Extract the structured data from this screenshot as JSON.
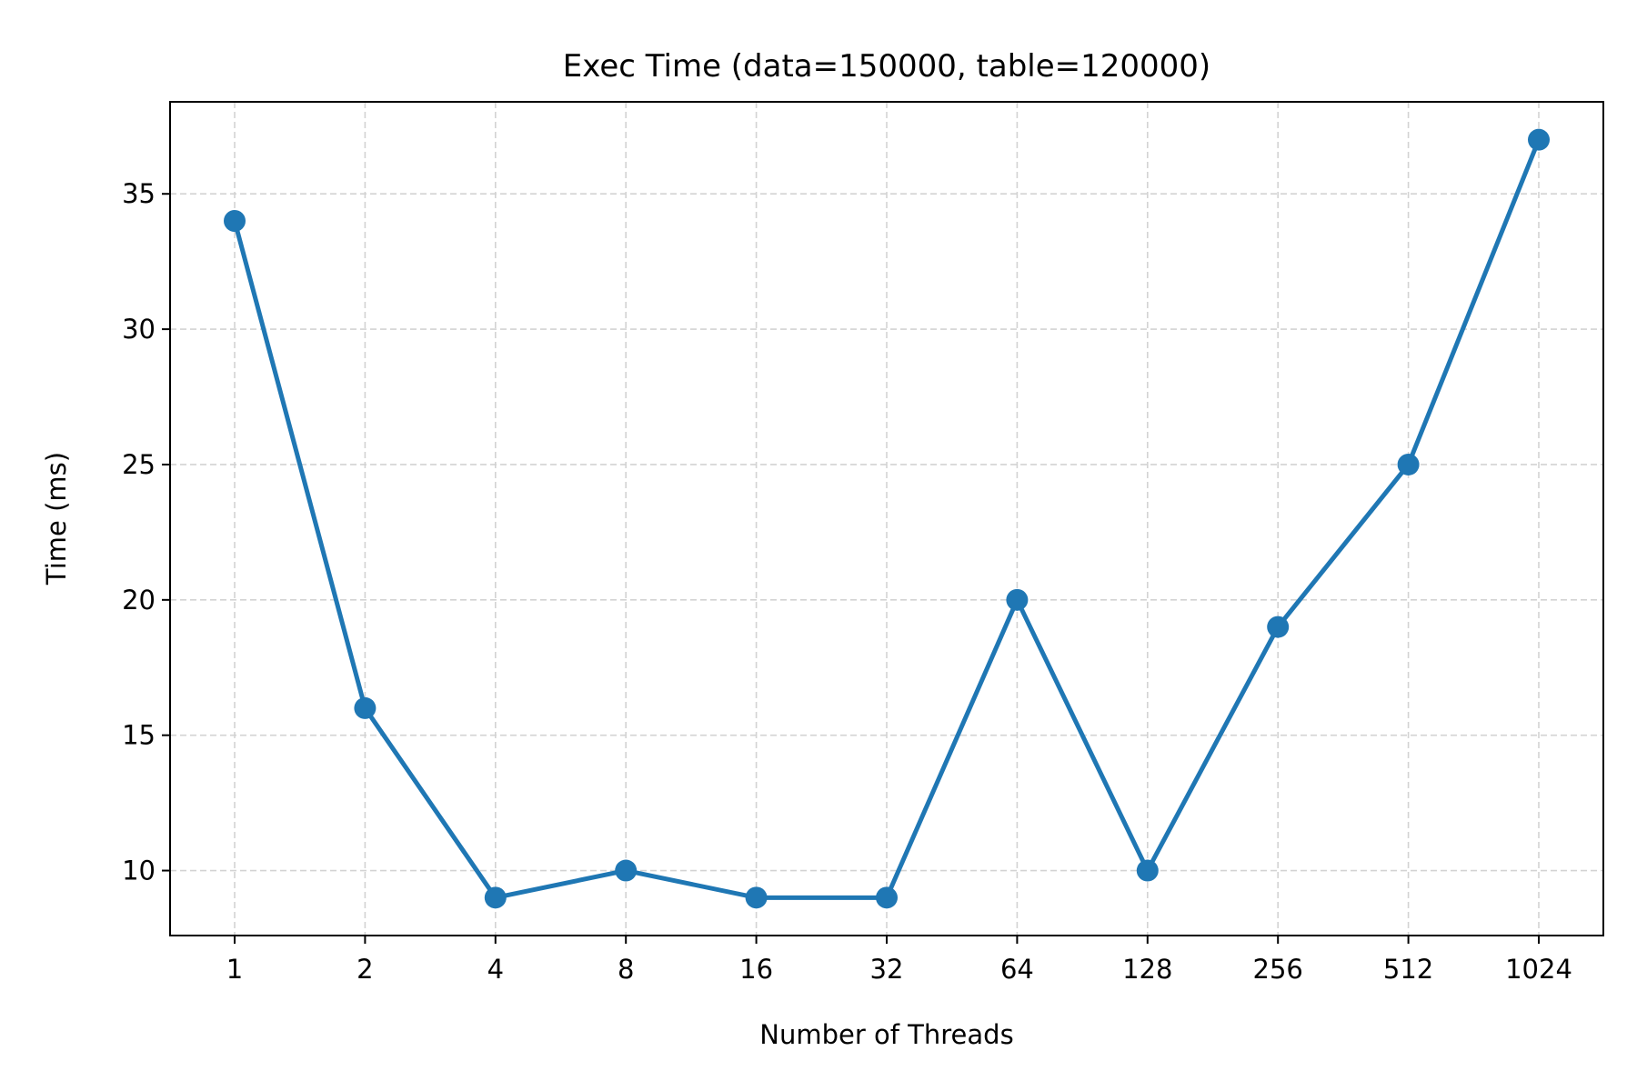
{
  "chart_data": {
    "type": "line",
    "title": "Exec Time (data=150000, table=120000)",
    "xlabel": "Number of Threads",
    "ylabel": "Time (ms)",
    "categories": [
      "1",
      "2",
      "4",
      "8",
      "16",
      "32",
      "64",
      "128",
      "256",
      "512",
      "1024"
    ],
    "series": [
      {
        "values": [
          34,
          16,
          9,
          10,
          9,
          9,
          20,
          10,
          19,
          25,
          37
        ]
      }
    ],
    "y_ticks": [
      10,
      15,
      20,
      25,
      30,
      35
    ],
    "ylim": [
      7.6,
      38.4
    ],
    "grid": true,
    "line_color": "#1f77b4",
    "marker": "circle"
  }
}
